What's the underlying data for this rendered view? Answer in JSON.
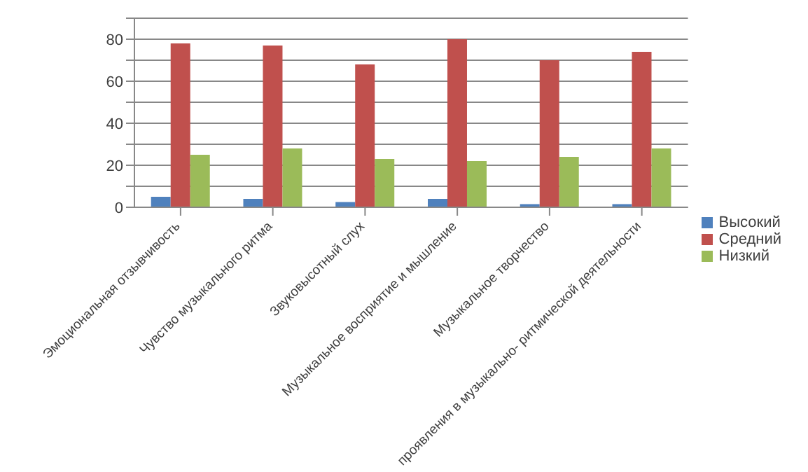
{
  "chart_data": {
    "type": "bar",
    "categories": [
      "Эмоциональная отзывчивость",
      "Чувство музыкального ритма",
      "Звуковысотный слух",
      "Музыкальное восприятие и мышление",
      "Музыкальное творчество",
      "проявления в музыкально- ритмической деятельности"
    ],
    "series": [
      {
        "name": "Высокий",
        "color": "#4f81bd",
        "values": [
          5,
          4,
          2.5,
          4,
          1.5,
          1.5
        ]
      },
      {
        "name": "Средний",
        "color": "#c0504d",
        "values": [
          78,
          77,
          68,
          80,
          70,
          74
        ]
      },
      {
        "name": "Низкий",
        "color": "#9bbb59",
        "values": [
          25,
          28,
          23,
          22,
          24,
          28
        ]
      }
    ],
    "ylim": [
      0,
      90
    ],
    "yticks": [
      0,
      {
        "value": 10,
        "label": null
      },
      20,
      {
        "value": 30,
        "label": null
      },
      40,
      {
        "value": 50,
        "label": null
      },
      60,
      {
        "value": 70,
        "label": null
      },
      80,
      {
        "value": 90,
        "label": null
      }
    ],
    "grid": "y",
    "legend": "right"
  }
}
